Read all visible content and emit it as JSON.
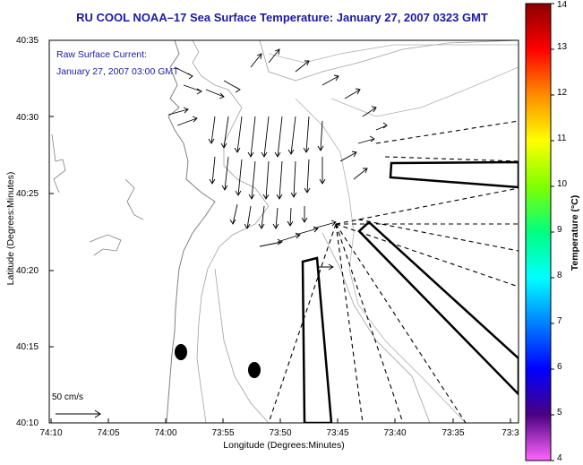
{
  "title": "RU COOL  NOAA–17  Sea Surface Temperature:  January 27, 2007 0323 GMT",
  "annotation": {
    "line1": "Raw Surface Current:",
    "line2": "January 27, 2007 03:00 GMT"
  },
  "axes": {
    "ylabel": "Latitude (Degrees:Minutes)",
    "xlabel": "Longitude (Degrees:Minutes)",
    "yticks": [
      "40:35",
      "40:30",
      "40:25",
      "40:20",
      "40:15",
      "40:10"
    ],
    "xticks": [
      "74:10",
      "74:05",
      "74:00",
      "73:55",
      "73:50",
      "73:45",
      "73:40",
      "73:35",
      "73:3"
    ]
  },
  "colorbar": {
    "title": "Temperature (°C)",
    "ticks": [
      "14",
      "13",
      "12",
      "11",
      "10",
      "9",
      "8",
      "7",
      "6",
      "5",
      "4"
    ],
    "colors": [
      "#8b0000",
      "#ff0000",
      "#ff8c00",
      "#ffff00",
      "#7fff00",
      "#00ff80",
      "#00ffff",
      "#0080ff",
      "#0000ff",
      "#4b0082",
      "#ff66ff"
    ]
  },
  "scale": {
    "label": "50 cm/s"
  },
  "colors": {
    "title": "#1a1aa6",
    "coast": "#808080",
    "frame": "#000000"
  }
}
